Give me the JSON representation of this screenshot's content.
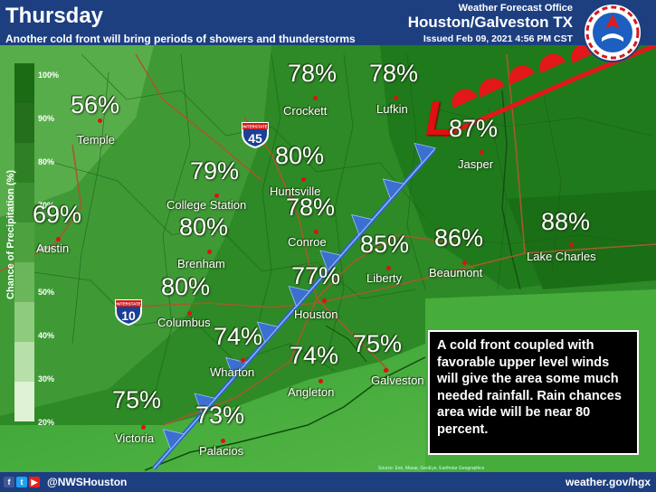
{
  "header": {
    "title": "Thursday",
    "subtitle": "Another cold front will bring periods of showers and thunderstorms",
    "office": "Weather Forecast Office",
    "city": "Houston/Galveston TX",
    "issued": "Issued Feb 09, 2021 4:56 PM CST"
  },
  "legend": {
    "title": "Chance of Precipitation (%)",
    "ticks": [
      "100%",
      "90%",
      "80%",
      "70%",
      "60%",
      "50%",
      "40%",
      "30%",
      "20%"
    ],
    "colors": [
      "#1b6b14",
      "#236f1b",
      "#2f7f25",
      "#3b8f30",
      "#4ea13f",
      "#6bb65a",
      "#8fcb7e",
      "#b7dfa9",
      "#dff2d6"
    ]
  },
  "locations": [
    {
      "name": "Temple",
      "pct": "56%"
    },
    {
      "name": "Austin",
      "pct": "69%"
    },
    {
      "name": "Crockett",
      "pct": "78%"
    },
    {
      "name": "Lufkin",
      "pct": "78%"
    },
    {
      "name": "Jasper",
      "pct": "87%"
    },
    {
      "name": "Huntsville",
      "pct": "80%"
    },
    {
      "name": "College Station",
      "pct": "79%"
    },
    {
      "name": "Conroe",
      "pct": "78%"
    },
    {
      "name": "Brenham",
      "pct": "80%"
    },
    {
      "name": "Liberty",
      "pct": "85%"
    },
    {
      "name": "Beaumont",
      "pct": "86%"
    },
    {
      "name": "Lake Charles",
      "pct": "88%"
    },
    {
      "name": "Houston",
      "pct": "77%"
    },
    {
      "name": "Columbus",
      "pct": "80%"
    },
    {
      "name": "Wharton",
      "pct": "74%"
    },
    {
      "name": "Angleton",
      "pct": "74%"
    },
    {
      "name": "Galveston",
      "pct": "75%"
    },
    {
      "name": "Victoria",
      "pct": "75%"
    },
    {
      "name": "Palacios",
      "pct": "73%"
    }
  ],
  "interstates": [
    {
      "label": "INTERSTATE",
      "number": "45"
    },
    {
      "label": "INTERSTATE",
      "number": "10"
    }
  ],
  "low_symbol": "L",
  "discussion": "A cold front coupled with favorable upper level winds will give the area some much needed rainfall. Rain chances area wide will be near 80 percent.",
  "credits": "Source: Esri, Maxar, GeoEye, Earthstar Geographics",
  "footer": {
    "social_icons": [
      "facebook-icon",
      "twitter-icon",
      "youtube-icon"
    ],
    "handle": "@NWSHouston",
    "url": "weather.gov/hgx"
  },
  "colors": {
    "header_bg": "#1d3f80",
    "cold_front": "#3b6fd0",
    "warm_front": "#e31818",
    "city_dot": "#e01010"
  }
}
